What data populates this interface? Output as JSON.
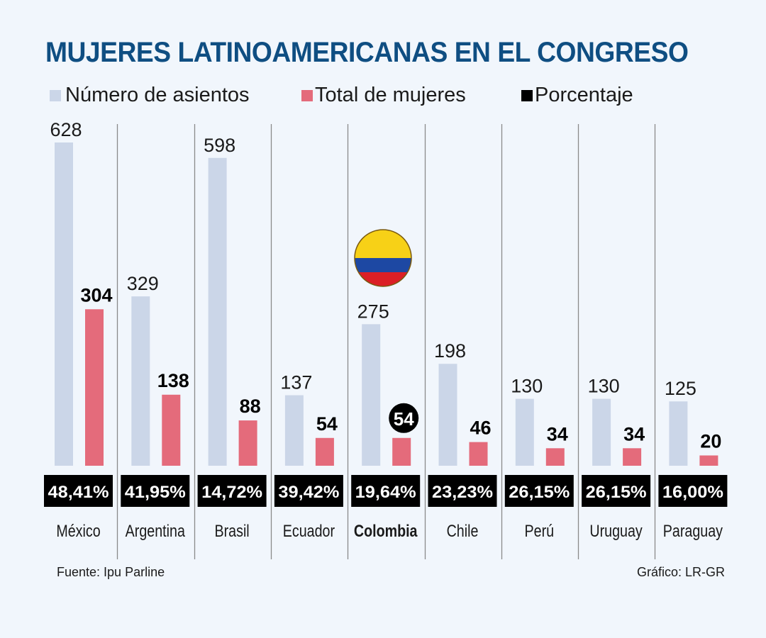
{
  "chart_data": {
    "type": "bar",
    "title": "MUJERES LATINOAMERICANAS EN EL CONGRESO",
    "categories": [
      "México",
      "Argentina",
      "Brasil",
      "Ecuador",
      "Colombia",
      "Chile",
      "Perú",
      "Uruguay",
      "Paraguay"
    ],
    "highlight_category": "Colombia",
    "series": [
      {
        "name": "Número de asientos",
        "color": "#cbd6e8",
        "values": [
          628,
          329,
          598,
          137,
          275,
          198,
          130,
          130,
          125
        ]
      },
      {
        "name": "Total de mujeres",
        "color": "#e46b7b",
        "values": [
          304,
          138,
          88,
          54,
          54,
          46,
          34,
          34,
          20
        ]
      }
    ],
    "percentages": [
      "48,41%",
      "41,95%",
      "14,72%",
      "39,42%",
      "19,64%",
      "23,23%",
      "26,15%",
      "26,15%",
      "16,00%"
    ],
    "legend": [
      {
        "label": "Número de asientos",
        "color": "#cbd6e8"
      },
      {
        "label": "Total de mujeres",
        "color": "#e46b7b"
      },
      {
        "label": "Porcentaje",
        "color": "#000000"
      }
    ],
    "legend_position": "top",
    "xlabel": "",
    "ylabel": "",
    "ylim": [
      0,
      628
    ],
    "grid": false
  },
  "footer": {
    "source": "Fuente: Ipu Parline",
    "credit": "Gráfico: LR-GR"
  },
  "colors": {
    "title": "#0f4e82",
    "background": "#f1f6fc",
    "divider": "#8a8a8a"
  }
}
